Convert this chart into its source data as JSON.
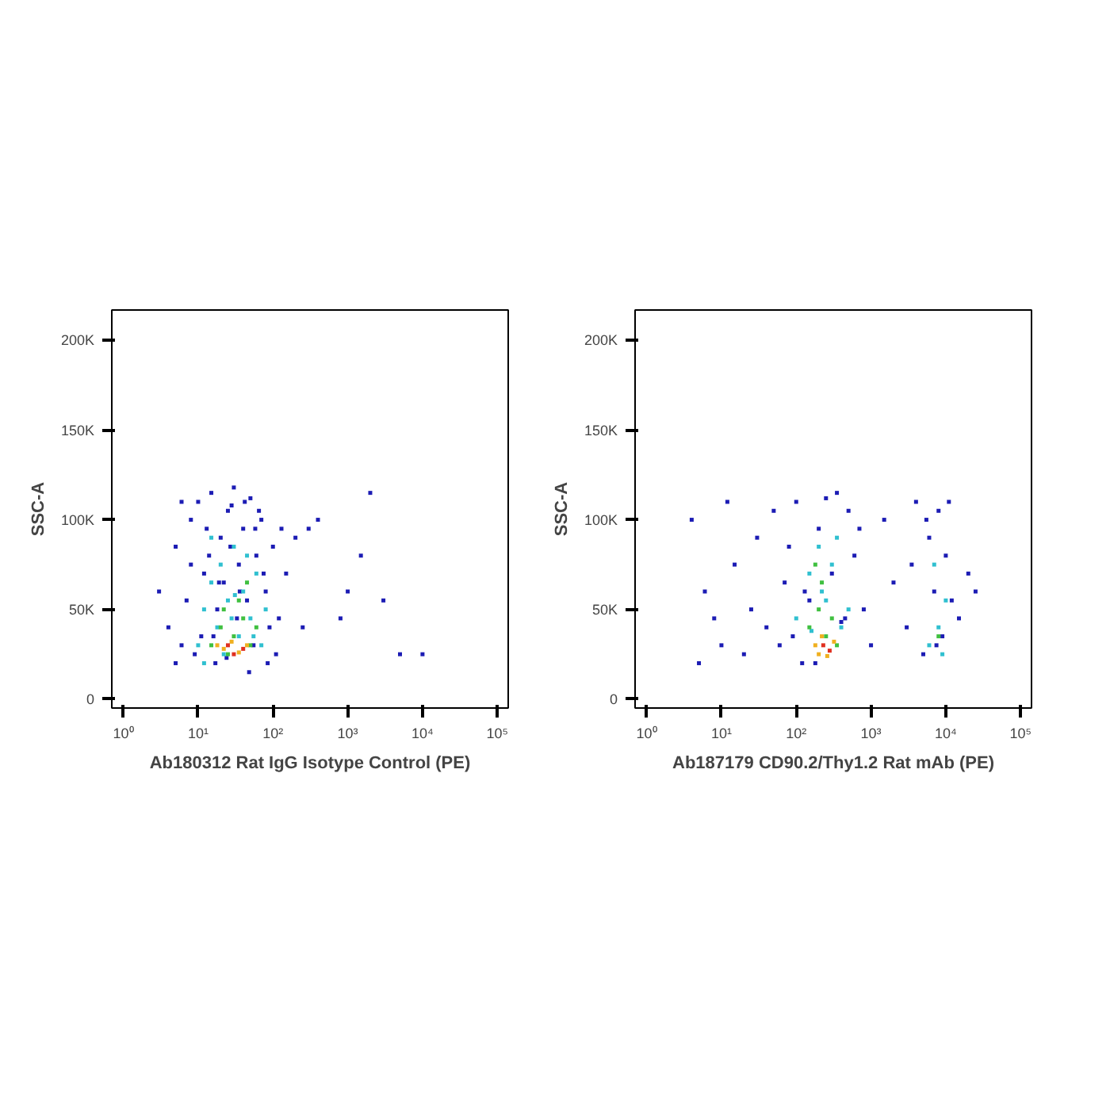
{
  "chart_data": [
    {
      "type": "scatter",
      "xlabel": "Ab180312 Rat IgG Isotype Control (PE)",
      "ylabel": "SSC-A",
      "log": "x",
      "marker": "square",
      "grid": false,
      "xlim": [
        0.7,
        140000
      ],
      "ylim": [
        -5000,
        217000
      ],
      "xticks": [
        {
          "value": 1,
          "label": "10⁰"
        },
        {
          "value": 10,
          "label": "10¹"
        },
        {
          "value": 100,
          "label": "10²"
        },
        {
          "value": 1000,
          "label": "10³"
        },
        {
          "value": 10000,
          "label": "10⁴"
        },
        {
          "value": 100000,
          "label": "10⁵"
        }
      ],
      "yticks": [
        0,
        {
          "value": 50000,
          "label": "50K"
        },
        {
          "value": 100000,
          "label": "100K"
        },
        {
          "value": 150000,
          "label": "150K"
        },
        {
          "value": 200000,
          "label": "200K"
        }
      ],
      "series": [
        {
          "color": "#1c1cb4",
          "x": [
            3,
            4,
            5,
            6,
            8,
            10,
            12,
            15,
            18,
            20,
            25,
            30,
            35,
            40,
            50,
            60,
            70,
            80,
            100,
            120,
            150,
            200,
            300,
            400,
            5,
            7,
            9,
            11,
            14,
            17,
            22,
            28,
            33,
            45,
            55,
            65,
            90,
            110,
            13,
            16,
            19,
            24,
            27,
            36,
            42,
            48,
            58,
            75,
            85,
            130,
            250,
            800,
            1000,
            1500,
            2000,
            3000,
            5000,
            10000,
            6,
            8
          ],
          "values": [
            60000,
            40000,
            85000,
            30000,
            100000,
            110000,
            70000,
            115000,
            50000,
            90000,
            105000,
            118000,
            75000,
            95000,
            112000,
            80000,
            100000,
            60000,
            85000,
            45000,
            70000,
            90000,
            95000,
            100000,
            20000,
            55000,
            25000,
            35000,
            80000,
            20000,
            65000,
            108000,
            45000,
            55000,
            30000,
            105000,
            40000,
            25000,
            95000,
            35000,
            65000,
            23000,
            85000,
            60000,
            110000,
            15000,
            95000,
            70000,
            20000,
            95000,
            40000,
            45000,
            60000,
            80000,
            115000,
            55000,
            25000,
            25000,
            110000,
            75000
          ]
        },
        {
          "color": "#30c0d0",
          "x": [
            10,
            12,
            15,
            18,
            20,
            25,
            30,
            35,
            40,
            50,
            60,
            70,
            15,
            22,
            28,
            45,
            55,
            12,
            31,
            80
          ],
          "values": [
            30000,
            50000,
            65000,
            40000,
            75000,
            55000,
            85000,
            35000,
            60000,
            45000,
            70000,
            30000,
            90000,
            25000,
            45000,
            80000,
            35000,
            20000,
            58000,
            50000
          ]
        },
        {
          "color": "#40c040",
          "x": [
            15,
            20,
            25,
            30,
            40,
            50,
            60,
            35,
            45,
            22
          ],
          "values": [
            30000,
            40000,
            25000,
            35000,
            45000,
            30000,
            40000,
            55000,
            65000,
            50000
          ]
        },
        {
          "color": "#f0b020",
          "x": [
            18,
            22,
            28,
            35,
            45
          ],
          "values": [
            30000,
            28000,
            32000,
            26000,
            30000
          ]
        },
        {
          "color": "#e03020",
          "x": [
            25,
            40,
            30
          ],
          "values": [
            30000,
            28000,
            25000
          ]
        }
      ]
    },
    {
      "type": "scatter",
      "xlabel": "Ab187179 CD90.2/Thy1.2 Rat mAb (PE)",
      "ylabel": "SSC-A",
      "log": "x",
      "marker": "square",
      "grid": false,
      "xlim": [
        0.7,
        140000
      ],
      "ylim": [
        -5000,
        217000
      ],
      "xticks": [
        {
          "value": 1,
          "label": "10⁰"
        },
        {
          "value": 10,
          "label": "10¹"
        },
        {
          "value": 100,
          "label": "10²"
        },
        {
          "value": 1000,
          "label": "10³"
        },
        {
          "value": 10000,
          "label": "10⁴"
        },
        {
          "value": 100000,
          "label": "10⁵"
        }
      ],
      "yticks": [
        0,
        {
          "value": 50000,
          "label": "50K"
        },
        {
          "value": 100000,
          "label": "100K"
        },
        {
          "value": 150000,
          "label": "150K"
        },
        {
          "value": 200000,
          "label": "200K"
        }
      ],
      "series": [
        {
          "color": "#1c1cb4",
          "x": [
            4,
            5,
            6,
            8,
            10,
            12,
            15,
            20,
            25,
            30,
            40,
            50,
            60,
            70,
            80,
            100,
            120,
            150,
            200,
            250,
            300,
            400,
            500,
            600,
            800,
            1000,
            1500,
            2000,
            3000,
            4000,
            5000,
            6000,
            7000,
            8000,
            9000,
            10000,
            12000,
            15000,
            20000,
            25000,
            90,
            130,
            180,
            350,
            450,
            700,
            3500,
            5500,
            7500,
            11000
          ],
          "values": [
            100000,
            20000,
            60000,
            45000,
            30000,
            110000,
            75000,
            25000,
            50000,
            90000,
            40000,
            105000,
            30000,
            65000,
            85000,
            110000,
            20000,
            55000,
            95000,
            112000,
            70000,
            43000,
            105000,
            80000,
            50000,
            30000,
            100000,
            65000,
            40000,
            110000,
            25000,
            90000,
            60000,
            105000,
            35000,
            80000,
            55000,
            45000,
            70000,
            60000,
            35000,
            60000,
            20000,
            115000,
            45000,
            95000,
            75000,
            100000,
            30000,
            110000
          ]
        },
        {
          "color": "#30c0d0",
          "x": [
            100,
            150,
            200,
            250,
            300,
            400,
            160,
            220,
            350,
            500,
            6000,
            8000,
            10000,
            7000,
            9000
          ],
          "values": [
            45000,
            70000,
            85000,
            55000,
            75000,
            40000,
            38000,
            60000,
            90000,
            50000,
            30000,
            40000,
            55000,
            75000,
            25000
          ]
        },
        {
          "color": "#40c040",
          "x": [
            150,
            200,
            250,
            300,
            180,
            350,
            220,
            8000
          ],
          "values": [
            40000,
            50000,
            35000,
            45000,
            75000,
            30000,
            65000,
            35000
          ]
        },
        {
          "color": "#f0b020",
          "x": [
            180,
            220,
            260,
            320,
            200
          ],
          "values": [
            30000,
            35000,
            24000,
            32000,
            25000
          ]
        },
        {
          "color": "#e03020",
          "x": [
            230,
            280
          ],
          "values": [
            30000,
            27000
          ]
        }
      ]
    }
  ]
}
